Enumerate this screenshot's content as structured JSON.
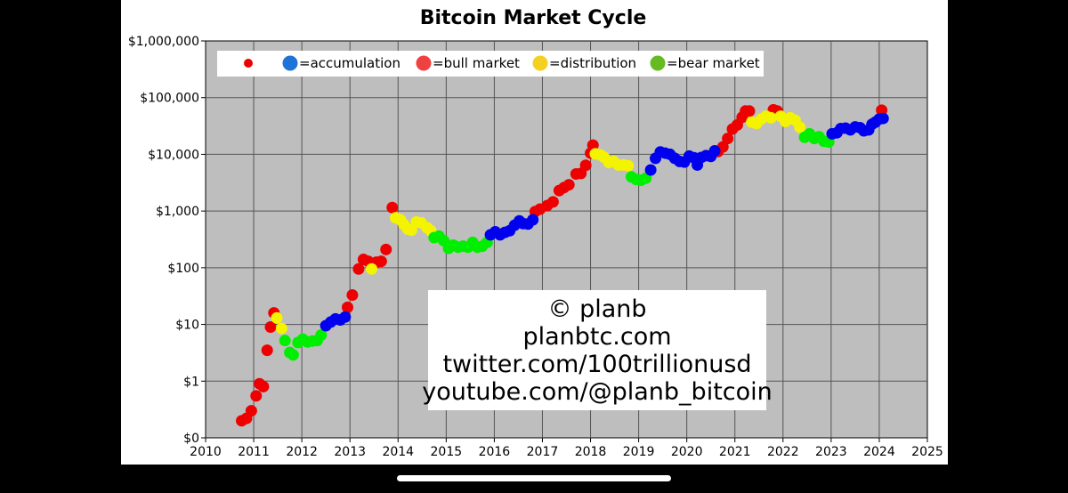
{
  "chart_data": {
    "type": "scatter",
    "title": "Bitcoin Market Cycle",
    "xlabel": "",
    "ylabel": "",
    "x_ticks": [
      "2010",
      "2011",
      "2012",
      "2013",
      "2014",
      "2015",
      "2016",
      "2017",
      "2018",
      "2019",
      "2020",
      "2021",
      "2022",
      "2023",
      "2024",
      "2025"
    ],
    "y_ticks": [
      "$0",
      "$1",
      "$10",
      "$100",
      "$1,000",
      "$10,000",
      "$100,000",
      "$1,000,000"
    ],
    "xlim": [
      2010,
      2025
    ],
    "ylim_log10": [
      -1,
      6
    ],
    "y_scale": "log",
    "grid": true,
    "legend_position": "top-left",
    "legend": [
      {
        "name": "",
        "color": "#ee0000"
      },
      {
        "name": "=accumulation",
        "color": "#1e73d8"
      },
      {
        "name": "=bull market",
        "color": "#f04141"
      },
      {
        "name": "=distribution",
        "color": "#f4d020"
      },
      {
        "name": "=bear market",
        "color": "#66bb22"
      }
    ],
    "series": [
      {
        "color": "#ee0000",
        "points": [
          [
            2010.75,
            0.2
          ],
          [
            2010.85,
            0.22
          ],
          [
            2010.95,
            0.3
          ],
          [
            2011.05,
            0.55
          ],
          [
            2011.12,
            0.9
          ],
          [
            2011.2,
            0.8
          ],
          [
            2011.28,
            3.5
          ],
          [
            2011.35,
            9
          ],
          [
            2011.42,
            16
          ],
          [
            2012.95,
            20
          ],
          [
            2013.05,
            33
          ],
          [
            2013.18,
            95
          ],
          [
            2013.28,
            140
          ],
          [
            2013.38,
            130
          ],
          [
            2013.55,
            125
          ],
          [
            2013.65,
            130
          ],
          [
            2013.75,
            210
          ],
          [
            2013.88,
            1150
          ],
          [
            2016.85,
            980
          ],
          [
            2016.95,
            1080
          ],
          [
            2017.1,
            1250
          ],
          [
            2017.22,
            1450
          ],
          [
            2017.35,
            2300
          ],
          [
            2017.45,
            2600
          ],
          [
            2017.55,
            2900
          ],
          [
            2017.7,
            4500
          ],
          [
            2017.8,
            4600
          ],
          [
            2017.9,
            6400
          ],
          [
            2018,
            10500
          ],
          [
            2018.05,
            14500
          ],
          [
            2020.65,
            11200
          ],
          [
            2020.75,
            13500
          ],
          [
            2020.85,
            19000
          ],
          [
            2020.95,
            28000
          ],
          [
            2021.05,
            33000
          ],
          [
            2021.15,
            45000
          ],
          [
            2021.22,
            58000
          ],
          [
            2021.3,
            58000
          ],
          [
            2021.8,
            61000
          ],
          [
            2021.88,
            58000
          ],
          [
            2024.05,
            60000
          ]
        ]
      },
      {
        "color": "#f4f400",
        "points": [
          [
            2011.48,
            13
          ],
          [
            2011.58,
            8.5
          ],
          [
            2013.45,
            95
          ],
          [
            2013.95,
            760
          ],
          [
            2014.05,
            700
          ],
          [
            2014.12,
            580
          ],
          [
            2014.2,
            480
          ],
          [
            2014.28,
            460
          ],
          [
            2014.38,
            640
          ],
          [
            2014.48,
            620
          ],
          [
            2014.6,
            510
          ],
          [
            2014.68,
            450
          ],
          [
            2018.1,
            10200
          ],
          [
            2018.2,
            9800
          ],
          [
            2018.28,
            8900
          ],
          [
            2018.38,
            7200
          ],
          [
            2018.48,
            7500
          ],
          [
            2018.58,
            6500
          ],
          [
            2018.68,
            6500
          ],
          [
            2018.78,
            6300
          ],
          [
            2021.35,
            37000
          ],
          [
            2021.45,
            35000
          ],
          [
            2021.55,
            42000
          ],
          [
            2021.65,
            47000
          ],
          [
            2021.75,
            44000
          ],
          [
            2021.95,
            47000
          ],
          [
            2022.05,
            38000
          ],
          [
            2022.15,
            44000
          ],
          [
            2022.25,
            40000
          ],
          [
            2022.35,
            30000
          ]
        ]
      },
      {
        "color": "#00ee00",
        "points": [
          [
            2011.65,
            5.2
          ],
          [
            2011.75,
            3.2
          ],
          [
            2011.82,
            2.9
          ],
          [
            2011.92,
            4.8
          ],
          [
            2012.02,
            5.5
          ],
          [
            2012.12,
            4.9
          ],
          [
            2012.22,
            5.1
          ],
          [
            2012.32,
            5.2
          ],
          [
            2012.4,
            6.5
          ],
          [
            2014.75,
            340
          ],
          [
            2014.85,
            360
          ],
          [
            2014.95,
            300
          ],
          [
            2015.05,
            220
          ],
          [
            2015.15,
            250
          ],
          [
            2015.25,
            230
          ],
          [
            2015.35,
            240
          ],
          [
            2015.45,
            230
          ],
          [
            2015.55,
            280
          ],
          [
            2015.65,
            230
          ],
          [
            2015.75,
            240
          ],
          [
            2015.85,
            280
          ],
          [
            2018.85,
            4000
          ],
          [
            2018.95,
            3600
          ],
          [
            2019.05,
            3500
          ],
          [
            2019.15,
            3800
          ],
          [
            2022.45,
            20000
          ],
          [
            2022.55,
            23000
          ],
          [
            2022.65,
            19000
          ],
          [
            2022.75,
            20500
          ],
          [
            2022.85,
            17000
          ],
          [
            2022.95,
            16500
          ]
        ]
      },
      {
        "color": "#0000ee",
        "points": [
          [
            2012.5,
            9.5
          ],
          [
            2012.6,
            11
          ],
          [
            2012.7,
            12.5
          ],
          [
            2012.8,
            12
          ],
          [
            2012.9,
            13.5
          ],
          [
            2015.92,
            380
          ],
          [
            2016.02,
            430
          ],
          [
            2016.12,
            380
          ],
          [
            2016.22,
            420
          ],
          [
            2016.32,
            450
          ],
          [
            2016.42,
            560
          ],
          [
            2016.52,
            670
          ],
          [
            2016.6,
            600
          ],
          [
            2016.7,
            590
          ],
          [
            2016.8,
            700
          ],
          [
            2019.25,
            5300
          ],
          [
            2019.35,
            8500
          ],
          [
            2019.45,
            11000
          ],
          [
            2019.55,
            10500
          ],
          [
            2019.65,
            10000
          ],
          [
            2019.75,
            8500
          ],
          [
            2019.85,
            7500
          ],
          [
            2019.95,
            7300
          ],
          [
            2020.05,
            9300
          ],
          [
            2020.15,
            8700
          ],
          [
            2020.22,
            6500
          ],
          [
            2020.3,
            8800
          ],
          [
            2020.4,
            9500
          ],
          [
            2020.5,
            9200
          ],
          [
            2020.58,
            11500
          ],
          [
            2023.02,
            23000
          ],
          [
            2023.12,
            24000
          ],
          [
            2023.2,
            28500
          ],
          [
            2023.3,
            29000
          ],
          [
            2023.4,
            27000
          ],
          [
            2023.5,
            30500
          ],
          [
            2023.6,
            29500
          ],
          [
            2023.68,
            26000
          ],
          [
            2023.78,
            27000
          ],
          [
            2023.85,
            34000
          ],
          [
            2023.92,
            37000
          ],
          [
            2024.0,
            42000
          ],
          [
            2024.08,
            43000
          ]
        ]
      }
    ]
  },
  "watermark": {
    "lines": [
      "© planb",
      "planbtc.com",
      "twitter.com/100trillionusd",
      "youtube.com/@planb_bitcoin"
    ]
  }
}
